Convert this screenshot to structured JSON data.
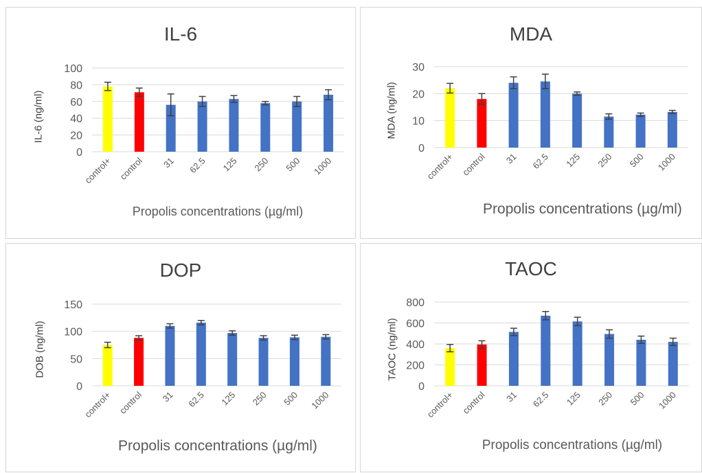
{
  "colors": {
    "positive_control": "#FFFF00",
    "control": "#FF0000",
    "treatment": "#4472C4",
    "error_bar": "#404040",
    "grid": "#d9d9d9",
    "tick_text": "#595959"
  },
  "chart_data": [
    {
      "type": "bar",
      "title": "IL-6",
      "xlabel": "Propolis concentrations (µg/ml)",
      "ylabel": "IL-6 (ng/ml)",
      "ylim": [
        0,
        100
      ],
      "yticks": [
        "0",
        "20",
        "40",
        "60",
        "80",
        "100"
      ],
      "grid": true,
      "categories": [
        "control+",
        "control",
        "31",
        "62.5",
        "125",
        "250",
        "500",
        "1000"
      ],
      "values": [
        78,
        71,
        56,
        60,
        63,
        58,
        60,
        68
      ],
      "errors": [
        5,
        5,
        13,
        6,
        4,
        2,
        6,
        6
      ]
    },
    {
      "type": "bar",
      "title": "MDA",
      "xlabel": "Propolis concentrations (µg/ml)",
      "ylabel": "MDA (ng/ml)",
      "ylim": [
        0,
        30
      ],
      "yticks": [
        "0",
        "10",
        "20",
        "30"
      ],
      "grid": true,
      "categories": [
        "control+",
        "control",
        "31",
        "62.5",
        "125",
        "250",
        "500",
        "1000"
      ],
      "values": [
        22,
        18,
        24,
        24.5,
        20,
        11.5,
        12.2,
        13.2
      ],
      "errors": [
        1.8,
        2,
        2.2,
        2.7,
        0.6,
        1,
        0.6,
        0.6
      ]
    },
    {
      "type": "bar",
      "title": "DOP",
      "xlabel": "Propolis concentrations (µg/ml)",
      "ylabel": "DOB (ng/ml)",
      "ylim": [
        0,
        150
      ],
      "yticks": [
        "0",
        "50",
        "100",
        "150"
      ],
      "grid": true,
      "categories": [
        "control+",
        "control",
        "31",
        "62.5",
        "125",
        "250",
        "500",
        "1000"
      ],
      "values": [
        75,
        88,
        110,
        116,
        97,
        88,
        89,
        90
      ],
      "errors": [
        5,
        4,
        4,
        4,
        4,
        4,
        4,
        4
      ]
    },
    {
      "type": "bar",
      "title": "TAOC",
      "xlabel": "Propolis concentrations (µg/ml)",
      "ylabel": "TAOC (ng/ml)",
      "ylim": [
        0,
        800
      ],
      "yticks": [
        "0",
        "200",
        "400",
        "600",
        "800"
      ],
      "grid": true,
      "categories": [
        "control+",
        "control",
        "31",
        "62.5",
        "125",
        "250",
        "500",
        "1000"
      ],
      "values": [
        360,
        395,
        515,
        670,
        615,
        495,
        440,
        420
      ],
      "errors": [
        35,
        35,
        35,
        40,
        40,
        40,
        35,
        35
      ]
    }
  ]
}
